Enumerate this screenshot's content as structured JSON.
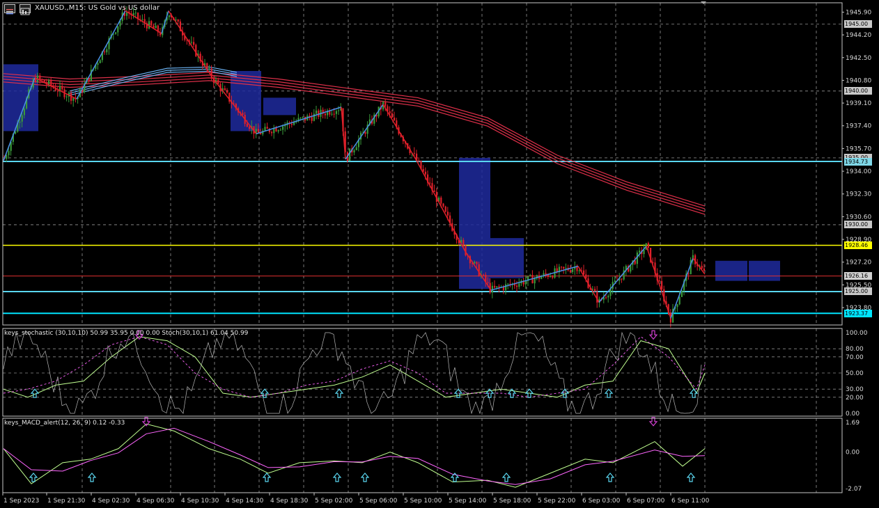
{
  "header": {
    "title": "XAUUSD.,M15:  US Gold vs US dollar",
    "chart_icon": "bar-chart-icon",
    "menu_icon": "window-icon"
  },
  "price_axis": {
    "labels": [
      "1945.90",
      "1944.20",
      "1942.50",
      "1940.80",
      "1939.10",
      "1937.40",
      "1935.70",
      "1934.00",
      "1932.30",
      "1930.60",
      "1928.90",
      "1927.20",
      "1925.50",
      "1923.80"
    ],
    "min": 1922.5,
    "max": 1946.6
  },
  "price_badges": [
    {
      "value": "1945.00",
      "bg": "#c8c8c8",
      "fg": "#000000"
    },
    {
      "value": "1940.00",
      "bg": "#c8c8c8",
      "fg": "#000000"
    },
    {
      "value": "1935.00",
      "bg": "#c8c8c8",
      "fg": "#000000"
    },
    {
      "value": "1934.73",
      "bg": "#7fd8e8",
      "fg": "#000000"
    },
    {
      "value": "1930.00",
      "bg": "#c8c8c8",
      "fg": "#000000"
    },
    {
      "value": "1928.46",
      "bg": "#ffff00",
      "fg": "#000000"
    },
    {
      "value": "1926.16",
      "bg": "#d0d0d0",
      "fg": "#000000"
    },
    {
      "value": "1925.00",
      "bg": "#c8c8c8",
      "fg": "#000000"
    },
    {
      "value": "1923.37",
      "bg": "#00e5ff",
      "fg": "#000000"
    }
  ],
  "horizontal_lines": [
    {
      "price": 1934.73,
      "color": "#5ad6f0",
      "width": 2
    },
    {
      "price": 1928.46,
      "color": "#ffff00",
      "width": 1.5
    },
    {
      "price": 1926.16,
      "color": "#e03030",
      "width": 1
    },
    {
      "price": 1925.0,
      "color": "#5ad6f0",
      "width": 2
    },
    {
      "price": 1923.37,
      "color": "#00e5ff",
      "width": 2
    }
  ],
  "time_axis": {
    "labels": [
      "1 Sep 2023",
      "1 Sep 21:30",
      "4 Sep 02:30",
      "4 Sep 06:30",
      "4 Sep 10:30",
      "4 Sep 14:30",
      "4 Sep 18:30",
      "5 Sep 02:00",
      "5 Sep 06:00",
      "5 Sep 10:00",
      "5 Sep 14:00",
      "5 Sep 18:00",
      "5 Sep 22:00",
      "6 Sep 03:00",
      "6 Sep 07:00",
      "6 Sep 11:00"
    ]
  },
  "stochastic": {
    "label": "keys_stochastic (30,10,10) 50.99 35.95 0.00 0.00 Stoch(30,10,1) 61.04 50.99",
    "levels": [
      "100.00",
      "80.00",
      "70.00",
      "50.00",
      "30.00",
      "20.00",
      "0.00"
    ]
  },
  "macd": {
    "label": "keys_MACD_alert(12, 26, 9) 0.12 -0.33",
    "levels": [
      "1.69",
      "0.00",
      "-2.07"
    ]
  },
  "colors": {
    "bull": "#3a9a3a",
    "bear": "#e0202a",
    "zigzag_up": "#4a90e8",
    "zigzag_down": "#e0202a",
    "ma": "#e0304a",
    "ma_blue": "#6ab0f0",
    "zone": "#1e2a9e"
  }
}
